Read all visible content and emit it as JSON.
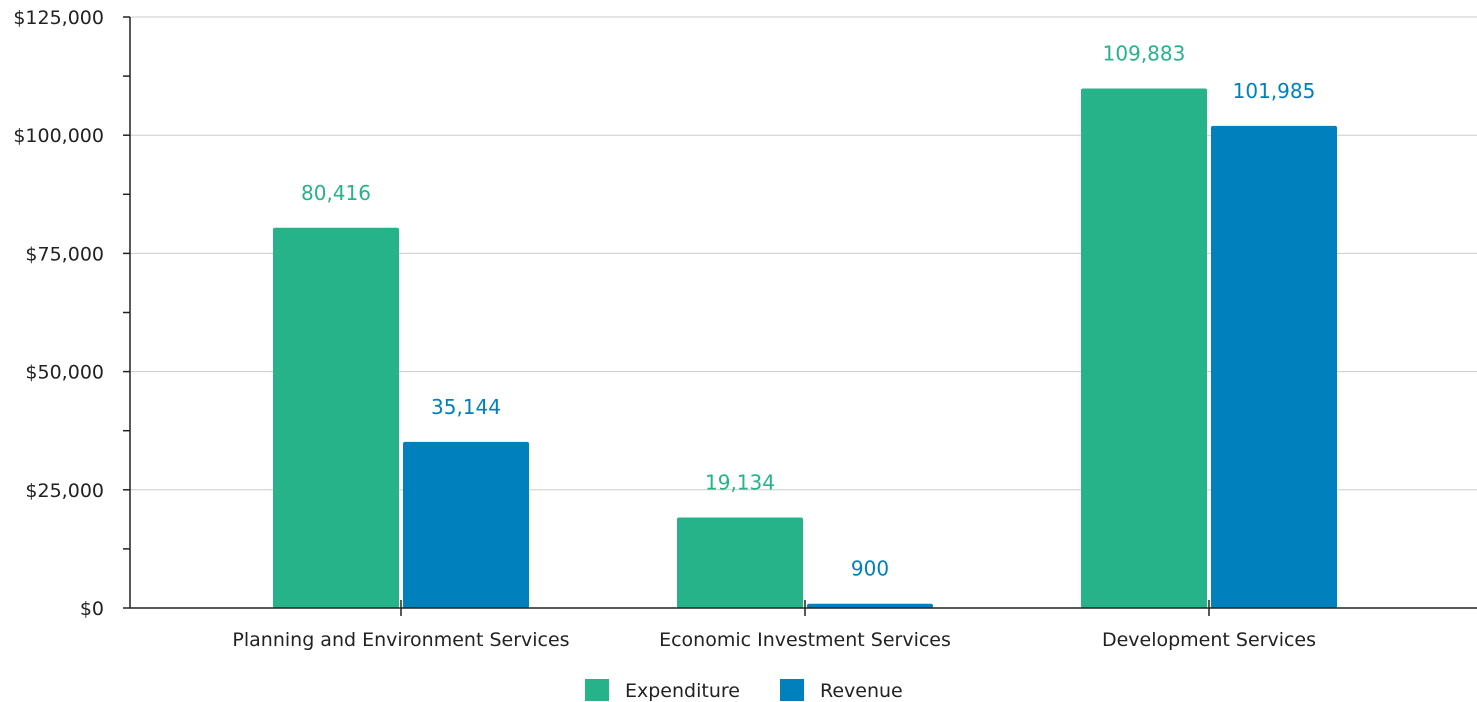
{
  "chart_data": {
    "type": "bar",
    "categories": [
      "Planning and Environment Services",
      "Economic Investment Services",
      "Development Services"
    ],
    "series": [
      {
        "name": "Expenditure",
        "values": [
          80416,
          19134,
          109883
        ],
        "labels": [
          "80,416",
          "19,134",
          "109,883"
        ],
        "color": "#27b38a"
      },
      {
        "name": "Revenue",
        "values": [
          35144,
          900,
          101985
        ],
        "labels": [
          "35,144",
          "900",
          "101,985"
        ],
        "color": "#0081bd"
      }
    ],
    "title": "",
    "xlabel": "",
    "ylabel": "",
    "ylim": [
      0,
      125000
    ],
    "yticks": [
      0,
      25000,
      50000,
      75000,
      100000,
      125000
    ],
    "ytick_labels": [
      "$0",
      "$25,000",
      "$50,000",
      "$75,000",
      "$100,000",
      "$125,000"
    ],
    "grid": true,
    "legend_position": "bottom"
  }
}
